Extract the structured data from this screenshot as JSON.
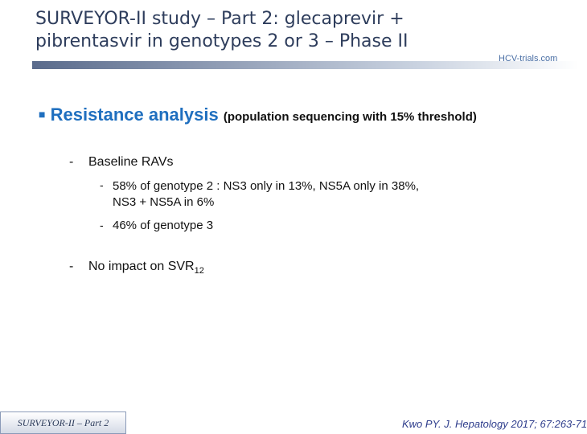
{
  "header": {
    "title_lines": [
      "SURVEYOR-II study – Part 2: glecaprevir +",
      "pibrentasvir in genotypes 2 or 3 – Phase II"
    ],
    "logo": "HCV-trials.com"
  },
  "body": {
    "heading": "Resistance analysis",
    "heading_note": "(population sequencing with 15% threshold)",
    "items": [
      {
        "text": "Baseline RAVs",
        "subitems": [
          {
            "lines": [
              "58% of genotype 2 : NS3 only in 13%, NS5A only in 38%,",
              "NS3 + NS5A in 6%"
            ]
          },
          {
            "lines": [
              "46% of genotype 3"
            ]
          }
        ]
      },
      {
        "text": "No impact on SVR",
        "subscript": "12"
      }
    ]
  },
  "footer": {
    "left": "SURVEYOR-II – Part 2",
    "right": "Kwo PY. J. Hepatology 2017; 67:263-71"
  }
}
